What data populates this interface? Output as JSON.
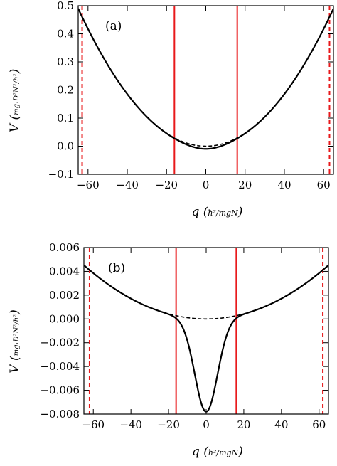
{
  "chart_data": [
    {
      "type": "line",
      "panel_label": "(a)",
      "xlabel": "q",
      "xlabel_unit": "ħ²/mgN",
      "ylabel": "V",
      "ylabel_unit": "mg₁D²N²/ħ²",
      "xlim": [
        -65,
        65
      ],
      "ylim": [
        -0.1,
        0.5
      ],
      "xticks": [
        -60,
        -40,
        -20,
        0,
        20,
        40,
        60
      ],
      "xtick_labels": [
        "−60",
        "−40",
        "−20",
        "0",
        "20",
        "40",
        "60"
      ],
      "yticks": [
        -0.1,
        0.0,
        0.1,
        0.2,
        0.3,
        0.4,
        0.5
      ],
      "ytick_labels": [
        "−0.1",
        "0.0",
        "0.1",
        "0.2",
        "0.3",
        "0.4",
        "0.5"
      ],
      "series": [
        {
          "style": "solid",
          "color": "#000000",
          "kind": "well",
          "a": 0.0001159,
          "depth": 0.0095,
          "width": 9
        },
        {
          "style": "dashed",
          "color": "#000000",
          "kind": "parabola",
          "a": 0.0001159,
          "xrange": [
            -25,
            25
          ]
        }
      ],
      "vlines": [
        {
          "x": -63,
          "style": "dashed",
          "color": "#e8191b"
        },
        {
          "x": -16,
          "style": "solid",
          "color": "#e8191b"
        },
        {
          "x": 16,
          "style": "solid",
          "color": "#e8191b"
        },
        {
          "x": 63,
          "style": "dashed",
          "color": "#e8191b"
        }
      ],
      "grid": false
    },
    {
      "type": "line",
      "panel_label": "(b)",
      "xlabel": "q",
      "xlabel_unit": "ħ²/mgN",
      "ylabel": "V",
      "ylabel_unit": "mg₁D²N²/ħ²",
      "xlim": [
        -65,
        65
      ],
      "ylim": [
        -0.008,
        0.006
      ],
      "xticks": [
        -60,
        -40,
        -20,
        0,
        20,
        40,
        60
      ],
      "xtick_labels": [
        "−60",
        "−40",
        "−20",
        "0",
        "20",
        "40",
        "60"
      ],
      "yticks": [
        -0.008,
        -0.006,
        -0.004,
        -0.002,
        0.0,
        0.002,
        0.004,
        0.006
      ],
      "ytick_labels": [
        "−0.008",
        "−0.006",
        "−0.004",
        "−0.002",
        "0.000",
        "0.002",
        "0.004",
        "0.006"
      ],
      "series": [
        {
          "style": "solid",
          "color": "#000000",
          "kind": "well",
          "a": 1.07e-06,
          "depth": 0.0078,
          "width": 6
        },
        {
          "style": "dashed",
          "color": "#000000",
          "kind": "parabola",
          "a": 1.07e-06,
          "xrange": [
            -28,
            28
          ]
        }
      ],
      "vlines": [
        {
          "x": -62,
          "style": "dashed",
          "color": "#e8191b"
        },
        {
          "x": -16,
          "style": "solid",
          "color": "#e8191b"
        },
        {
          "x": 16,
          "style": "solid",
          "color": "#e8191b"
        },
        {
          "x": 62,
          "style": "dashed",
          "color": "#e8191b"
        }
      ],
      "grid": false
    }
  ]
}
